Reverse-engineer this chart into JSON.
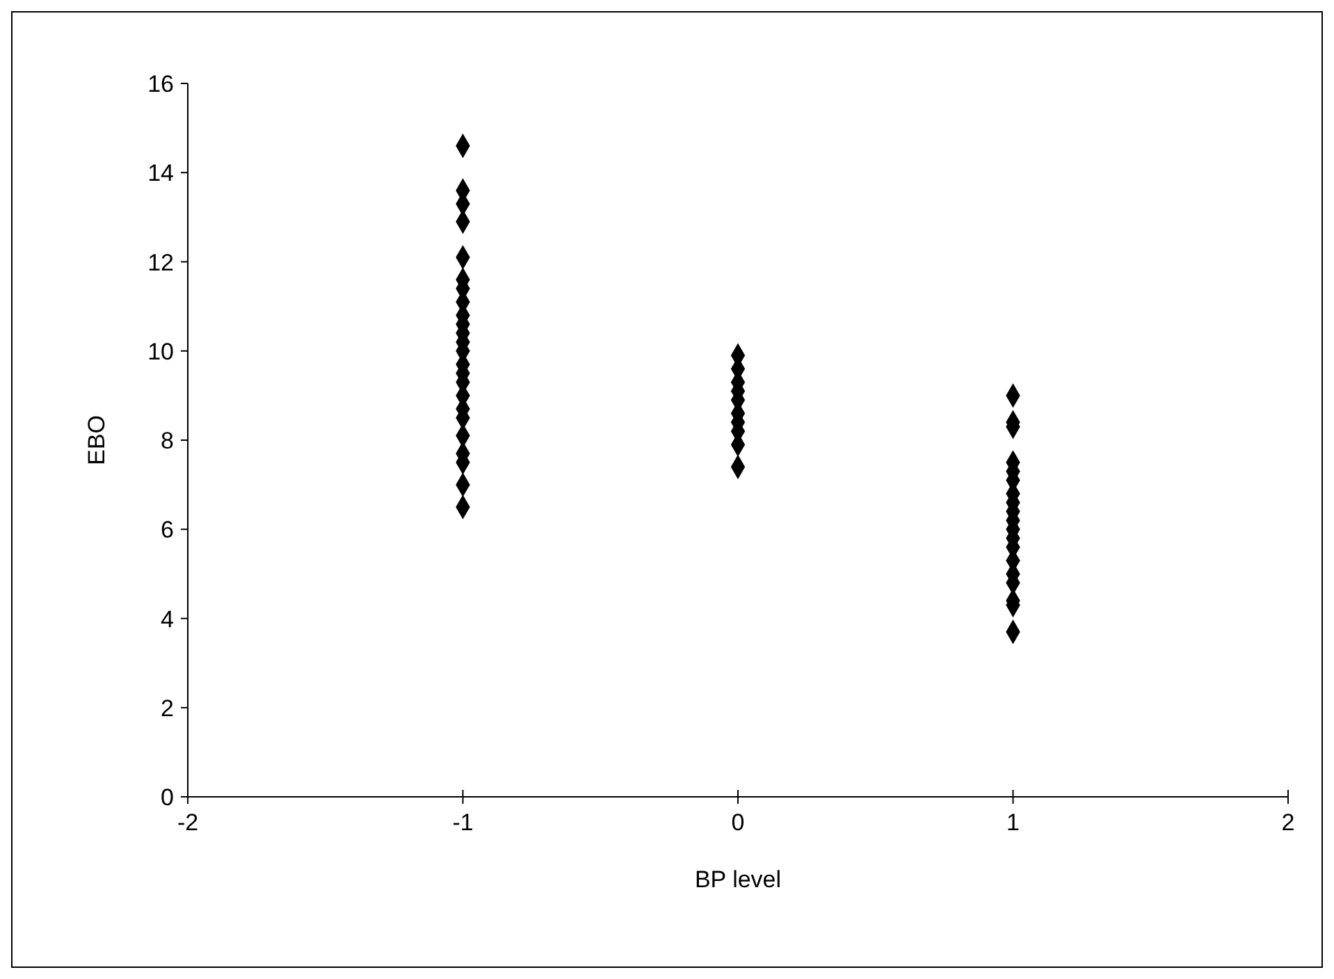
{
  "chart_data": {
    "type": "scatter",
    "xlabel": "BP level",
    "ylabel": "EBO",
    "xlim": [
      -2,
      2
    ],
    "xticks": [
      -2,
      -1,
      0,
      1,
      2
    ],
    "ylim": [
      0,
      16
    ],
    "yticks": [
      0,
      2,
      4,
      6,
      8,
      10,
      12,
      14,
      16
    ],
    "marker": "diamond",
    "series": [
      {
        "color": "#000000",
        "x": [
          -1,
          -1,
          -1,
          -1,
          -1,
          -1,
          -1,
          -1,
          -1,
          -1,
          -1,
          -1,
          -1,
          -1,
          -1,
          -1,
          -1,
          -1,
          -1,
          -1,
          -1,
          -1,
          -1,
          -1,
          0,
          0,
          0,
          0,
          0,
          0,
          0,
          0,
          0,
          0,
          1,
          1,
          1,
          1,
          1,
          1,
          1,
          1,
          1,
          1,
          1,
          1,
          1,
          1,
          1,
          1,
          1,
          1,
          1
        ],
        "values": [
          14.6,
          13.6,
          13.3,
          12.9,
          12.1,
          11.6,
          11.4,
          11.1,
          10.8,
          10.6,
          10.4,
          10.2,
          10.0,
          9.7,
          9.5,
          9.3,
          9.0,
          8.7,
          8.5,
          8.1,
          7.7,
          7.5,
          7.0,
          6.5,
          9.9,
          9.6,
          9.3,
          9.1,
          8.9,
          8.6,
          8.4,
          8.2,
          7.9,
          7.4,
          9.0,
          8.4,
          8.3,
          7.5,
          7.3,
          7.1,
          6.8,
          6.6,
          6.4,
          6.2,
          6.0,
          5.8,
          5.6,
          5.3,
          5.0,
          4.8,
          4.4,
          4.3,
          3.7
        ]
      }
    ]
  }
}
